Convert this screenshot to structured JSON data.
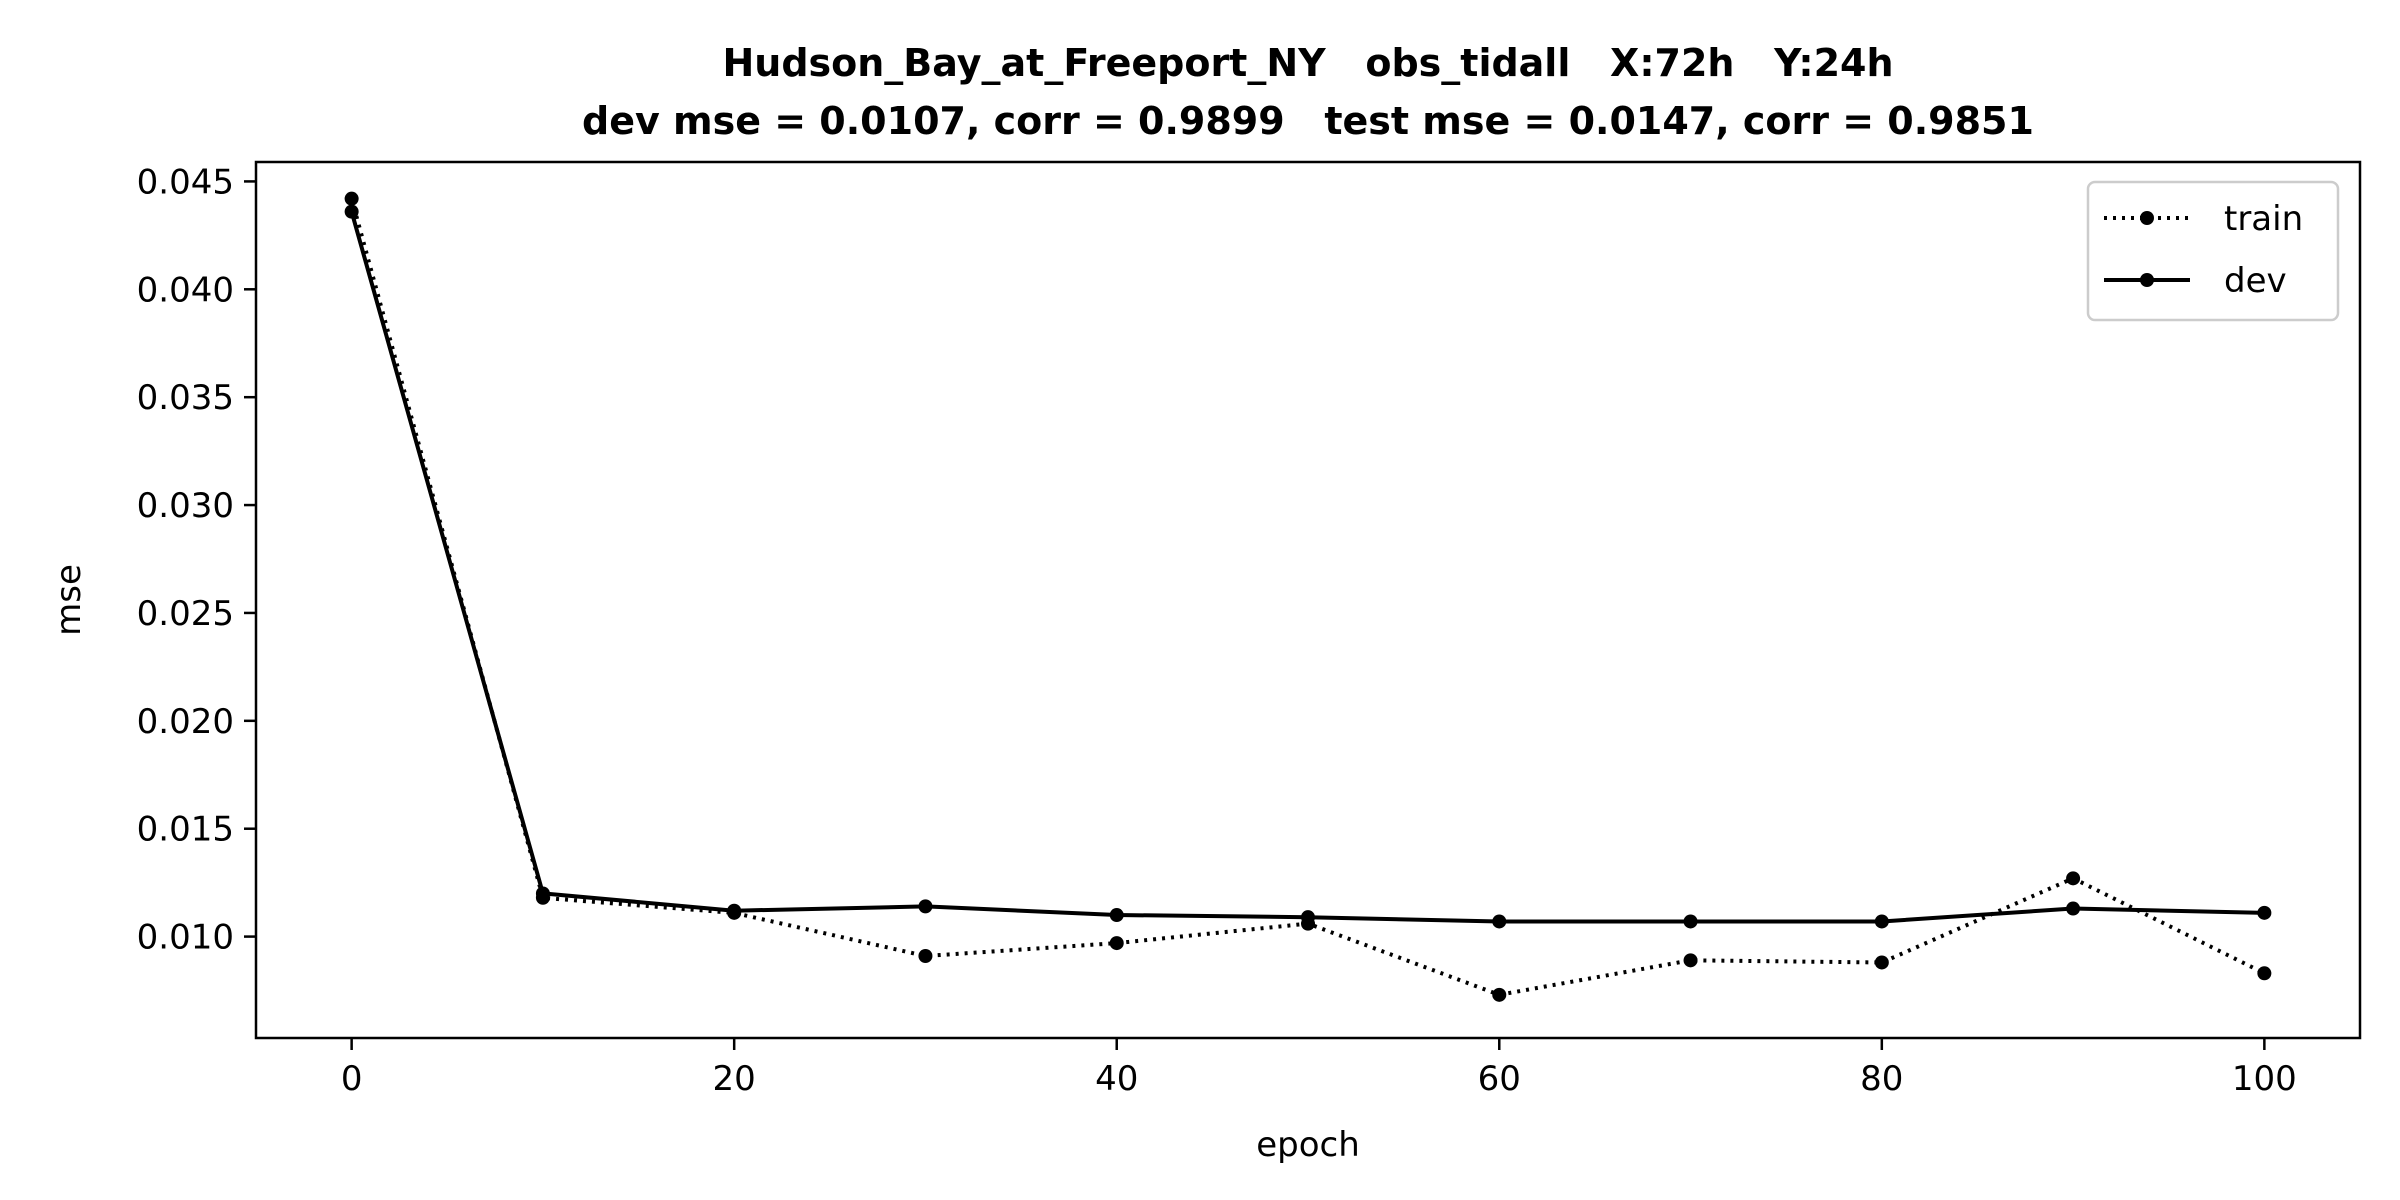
{
  "chart_data": {
    "type": "line",
    "title": "Hudson_Bay_at_Freeport_NY   obs_tidall   X:72h   Y:24h",
    "subtitle": "dev mse = 0.0107, corr = 0.9899   test mse = 0.0147, corr = 0.9851",
    "xlabel": "epoch",
    "ylabel": "mse",
    "xlim": [
      -5,
      105
    ],
    "ylim": [
      0.0053,
      0.0459
    ],
    "xticks": [
      0,
      20,
      40,
      60,
      80,
      100
    ],
    "xtick_labels": [
      "0",
      "20",
      "40",
      "60",
      "80",
      "100"
    ],
    "yticks": [
      0.01,
      0.015,
      0.02,
      0.025,
      0.03,
      0.035,
      0.04,
      0.045
    ],
    "ytick_labels": [
      "0.010",
      "0.015",
      "0.020",
      "0.025",
      "0.030",
      "0.035",
      "0.040",
      "0.045"
    ],
    "grid": false,
    "legend_position": "top-right",
    "x": [
      0,
      10,
      20,
      30,
      40,
      50,
      60,
      70,
      80,
      90,
      100
    ],
    "series": [
      {
        "name": "train",
        "style": "dotted",
        "color": "#000000",
        "values": [
          0.0442,
          0.0118,
          0.0111,
          0.0091,
          0.0097,
          0.0106,
          0.0073,
          0.0089,
          0.0088,
          0.0127,
          0.0083
        ]
      },
      {
        "name": "dev",
        "style": "solid",
        "color": "#000000",
        "values": [
          0.0436,
          0.012,
          0.0112,
          0.0114,
          0.011,
          0.0109,
          0.0107,
          0.0107,
          0.0107,
          0.0113,
          0.0111
        ]
      }
    ]
  }
}
